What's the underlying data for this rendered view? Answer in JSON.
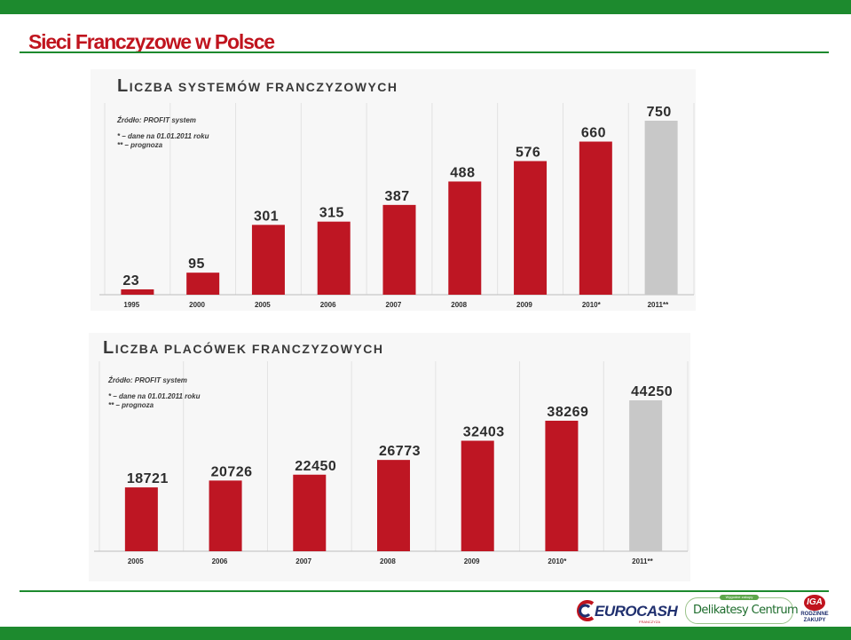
{
  "slide": {
    "title": "Sieci Franczyzowe w Polsce"
  },
  "colors": {
    "brand_green": "#1d8a2e",
    "title_red": "#c0141e",
    "bar_red": "#be1623",
    "bar_forecast_gray": "#c8c8c8"
  },
  "chart_data": [
    {
      "type": "bar",
      "title_first_letter": "L",
      "title_rest": "ICZBA SYSTEMÓW FRANCZYZOWYCH",
      "source": "Źródło: PROFIT system",
      "notes": [
        "*  – dane na 01.01.2011 roku",
        "** – prognoza"
      ],
      "categories": [
        "1995",
        "2000",
        "2005",
        "2006",
        "2007",
        "2008",
        "2009",
        "2010*",
        "2011**"
      ],
      "values": [
        23,
        95,
        301,
        315,
        387,
        488,
        576,
        660,
        750
      ],
      "forecast_index": 8,
      "ylim": [
        0,
        750
      ],
      "grid": "vertical",
      "legend": "none"
    },
    {
      "type": "bar",
      "title_first_letter": "L",
      "title_rest": "ICZBA PLACÓWEK FRANCZYZOWYCH",
      "source": "Źródło: PROFIT system",
      "notes": [
        "*  – dane na 01.01.2011 roku",
        "** – prognoza"
      ],
      "categories": [
        "2005",
        "2006",
        "2007",
        "2008",
        "2009",
        "2010*",
        "2011**"
      ],
      "values": [
        18721,
        20726,
        22450,
        26773,
        32403,
        38269,
        44250
      ],
      "forecast_index": 6,
      "ylim": [
        0,
        44250
      ],
      "grid": "vertical",
      "legend": "none"
    }
  ],
  "footer": {
    "logos": {
      "eurocash": "EUROCASH",
      "eurocash_sub": "FRANCZYZA",
      "delikatesy": "Delikatesy Centrum",
      "delikatesy_badge": "Wygodne zakupy",
      "iga": "IGA",
      "iga_sub1": "RODZINNE",
      "iga_sub2": "ZAKUPY"
    }
  }
}
